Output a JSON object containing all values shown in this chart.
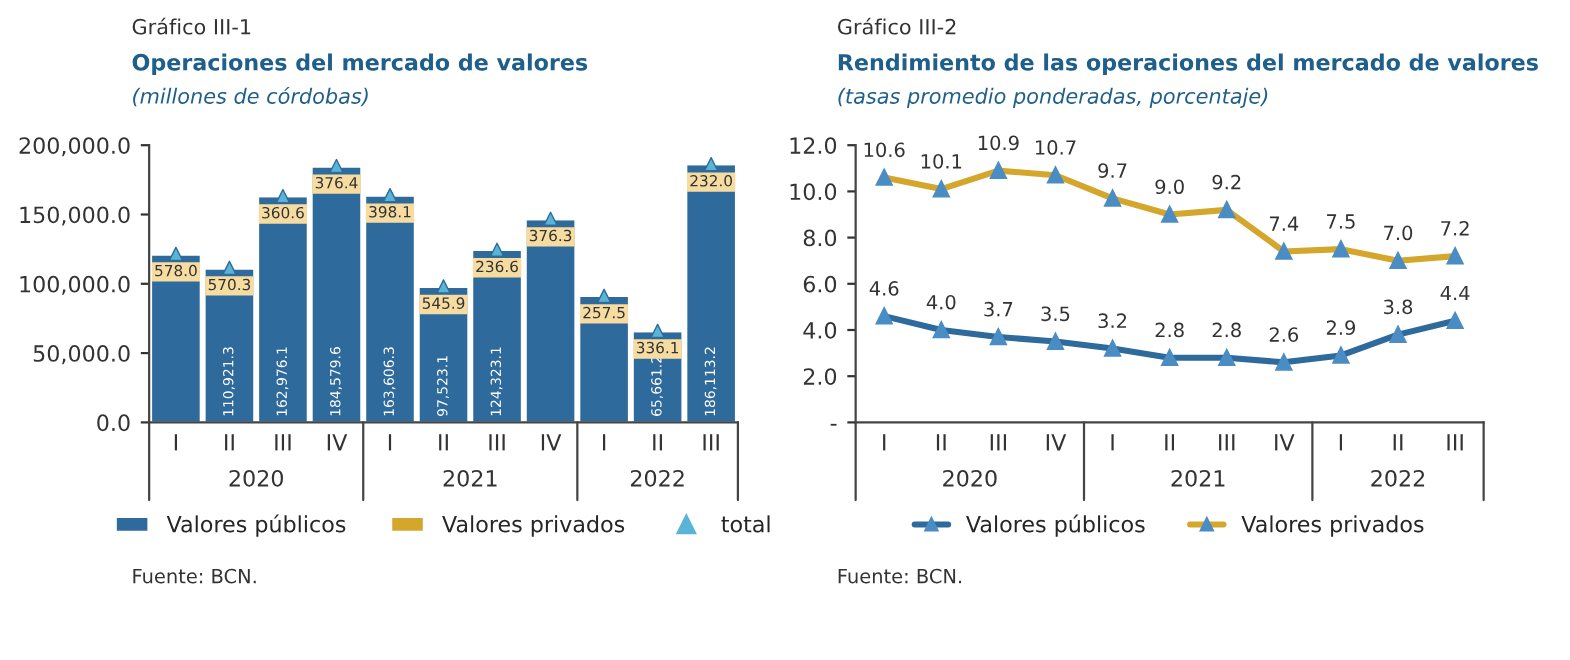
{
  "chart_data": [
    {
      "type": "bar",
      "title": "Operaciones del mercado de valores",
      "subtitle": "(millones de córdobas)",
      "categories": [
        "I",
        "II",
        "III",
        "IV",
        "I",
        "II",
        "III",
        "IV",
        "I",
        "II",
        "III"
      ],
      "stacked": true,
      "series": [
        {
          "name": "Valores públicos",
          "color": "#2e6a9c",
          "values": [
            121000,
            110921.3,
            162976.1,
            184579.6,
            163606.3,
            97523.1,
            124323.1,
            146500,
            91000,
            65661.2,
            186113.2
          ],
          "value_labels": [
            null,
            "110,921.3",
            "162,976.1",
            "184,579.6",
            "163,606.3",
            "97,523.1",
            "124,323.1",
            null,
            null,
            "65,661.2",
            "186,113.2"
          ]
        },
        {
          "name": "Valores privados",
          "color": "#d4a72c",
          "values": [
            578.0,
            570.3,
            360.6,
            376.4,
            398.1,
            545.9,
            236.6,
            376.3,
            257.5,
            336.1,
            232.0
          ],
          "value_labels": [
            "578.0",
            "570.3",
            "360.6",
            "376.4",
            "398.1",
            "545.9",
            "236.6",
            "376.3",
            "257.5",
            "336.1",
            "232.0"
          ]
        },
        {
          "name": "total",
          "type": "scatter",
          "color": "#5ab4d6",
          "marker": "triangle",
          "values": [
            121600,
            111500,
            163300,
            185000,
            164000,
            98100,
            124600,
            146900,
            91300,
            66000,
            186300
          ]
        }
      ],
      "ylim": [
        0,
        200000
      ],
      "yticks": [
        {
          "value": 0,
          "label": "0.0"
        },
        {
          "value": 50000,
          "label": "50,000.0"
        },
        {
          "value": 100000,
          "label": "100,000.0"
        },
        {
          "value": 150000,
          "label": "150,000.0"
        },
        {
          "value": 200000,
          "label": "200,000.0"
        }
      ],
      "grid": false,
      "legend": "bottom",
      "annotations": [
        "Gráfico III-1",
        "2020",
        "2021",
        "2022",
        "Fuente: BCN."
      ]
    },
    {
      "type": "line",
      "title": "Rendimiento de las operaciones del mercado de valores",
      "subtitle": "(tasas promedio ponderadas, porcentaje)",
      "categories": [
        "I",
        "II",
        "III",
        "IV",
        "I",
        "II",
        "III",
        "IV",
        "I",
        "II",
        "III"
      ],
      "series": [
        {
          "name": "Valores públicos",
          "color": "#2e6a9c",
          "values": [
            4.6,
            4.0,
            3.7,
            3.5,
            3.2,
            2.8,
            2.8,
            2.6,
            2.9,
            3.8,
            4.4
          ],
          "value_labels": [
            "4.6",
            "4.0",
            "3.7",
            "3.5",
            "3.2",
            "2.8",
            "2.8",
            "2.6",
            "2.9",
            "3.8",
            "4.4"
          ]
        },
        {
          "name": "Valores privados",
          "color": "#d4a72c",
          "values": [
            10.6,
            10.1,
            10.9,
            10.7,
            9.7,
            9.0,
            9.2,
            7.4,
            7.5,
            7.0,
            7.2
          ],
          "value_labels": [
            "10.6",
            "10.1",
            "10.9",
            "10.7",
            "9.7",
            "9.0",
            "9.2",
            "7.4",
            "7.5",
            "7.0",
            "7.2"
          ]
        }
      ],
      "ylim": [
        0,
        12
      ],
      "yticks": [
        {
          "value": 0,
          "label": "-"
        },
        {
          "value": 2,
          "label": "2.0"
        },
        {
          "value": 4,
          "label": "4.0"
        },
        {
          "value": 6,
          "label": "6.0"
        },
        {
          "value": 8,
          "label": "8.0"
        },
        {
          "value": 10,
          "label": "10.0"
        },
        {
          "value": 12,
          "label": "12.0"
        }
      ],
      "marker": "triangle",
      "line_style": "solid",
      "grid": false,
      "legend": "bottom",
      "annotations": [
        "Gráfico III-2",
        "2020",
        "2021",
        "2022",
        "Fuente: BCN."
      ]
    }
  ]
}
